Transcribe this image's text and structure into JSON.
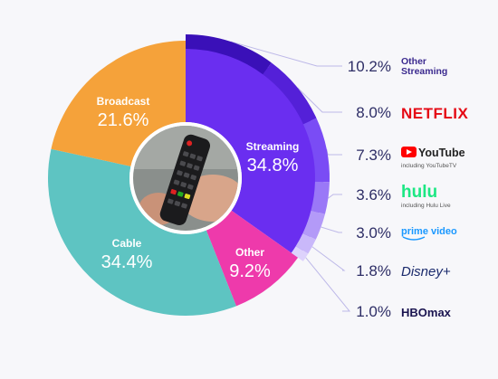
{
  "chart_data": {
    "type": "pie",
    "variant": "donut",
    "slices": [
      {
        "label": "Streaming",
        "value_text": "34.8%",
        "value": 34.8,
        "color": "#6a2ef0"
      },
      {
        "label": "Other",
        "value_text": "9.2%",
        "value": 9.2,
        "color": "#ee3aab"
      },
      {
        "label": "Cable",
        "value_text": "34.4%",
        "value": 34.4,
        "color": "#5ec4c2"
      },
      {
        "label": "Broadcast",
        "value_text": "21.6%",
        "value": 21.6,
        "color": "#f5a23a"
      }
    ],
    "streaming_breakdown": [
      {
        "brand": "Other Streaming",
        "brand_lines": [
          "Other",
          "Streaming"
        ],
        "sub": "",
        "value_text": "10.2%",
        "value": 10.2,
        "color": "#3a10b8",
        "icon": "text-logo-other-streaming"
      },
      {
        "brand": "NETFLIX",
        "brand_lines": [
          "NETFLIX"
        ],
        "sub": "",
        "value_text": "8.0%",
        "value": 8.0,
        "color": "#5420d8",
        "icon": "netflix-logo"
      },
      {
        "brand": "YouTube",
        "brand_lines": [
          "YouTube"
        ],
        "sub": "including YouTubeTV",
        "value_text": "7.3%",
        "value": 7.3,
        "color": "#7a4cf5",
        "icon": "youtube-logo"
      },
      {
        "brand": "hulu",
        "brand_lines": [
          "hulu"
        ],
        "sub": "including Hulu Live",
        "value_text": "3.6%",
        "value": 3.6,
        "color": "#9a78f7",
        "icon": "hulu-logo"
      },
      {
        "brand": "prime video",
        "brand_lines": [
          "prime video"
        ],
        "sub": "",
        "value_text": "3.0%",
        "value": 3.0,
        "color": "#b39af8",
        "icon": "prime-video-logo"
      },
      {
        "brand": "Disney+",
        "brand_lines": [
          "Disney+"
        ],
        "sub": "",
        "value_text": "1.8%",
        "value": 1.8,
        "color": "#c9b8fa",
        "icon": "disney-plus-logo"
      },
      {
        "brand": "HBOmax",
        "brand_lines": [
          "HBOmax"
        ],
        "sub": "",
        "value_text": "1.0%",
        "value": 1.0,
        "color": "#ddd2fc",
        "icon": "hbo-max-logo"
      }
    ],
    "center_image": "tv-remote-photo",
    "colors": {
      "netflix": "#e50914",
      "youtube_red": "#ff0000",
      "hulu": "#1ce783",
      "prime_blue": "#1a98ff",
      "brand_purple": "#3b2a8f",
      "value_text": "#2e2e66",
      "leader": "#bdb8e8"
    }
  }
}
